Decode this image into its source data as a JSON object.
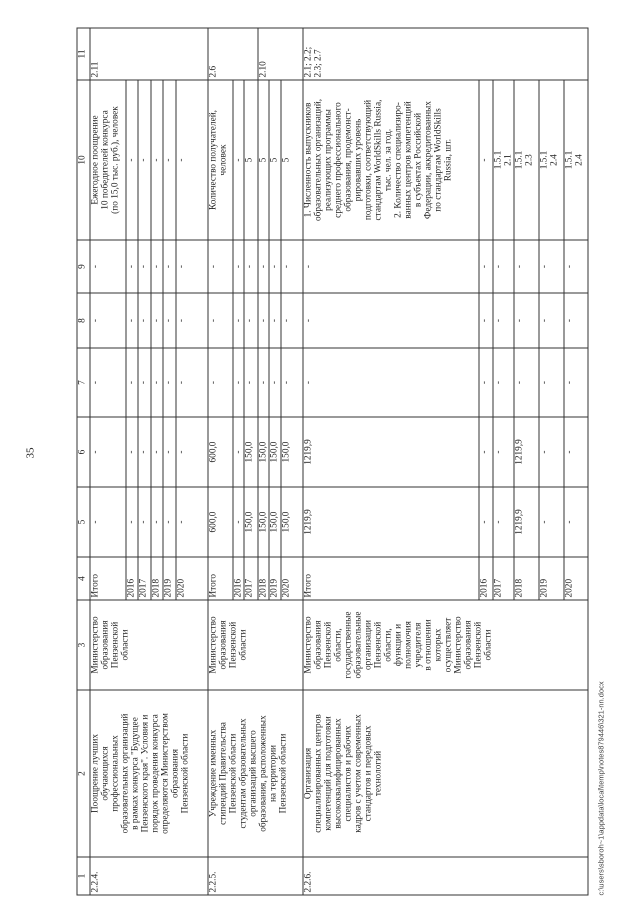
{
  "page_number": "35",
  "footer_path": "c:\\users\\sboroh~1\\appdata\\local\\temp\\notes879446\\321-nn.docx",
  "table": {
    "header": [
      "1",
      "2",
      "3",
      "4",
      "5",
      "6",
      "7",
      "8",
      "9",
      "10",
      "11"
    ],
    "groups": [
      {
        "num": "2.2.4.",
        "name": "Поощрение лучших\nобучающихся\nпрофессиональных\nобразовательных организаций\nв рамках конкурса \"Будущее\nПензенского края\". Условия и\nпорядок проведения конкурса\nопределяются Министерством\nобразования\nПензенской области",
        "executor": "Министерство\nобразования\nПензенской\nобласти",
        "rows": [
          {
            "period": "Итого",
            "values": [
              "-",
              "-",
              "-",
              "-",
              "-",
              "Ежегодное поощрение\n10 победителей конкурса\n(по 15,0 тыс. руб.), человек"
            ]
          },
          {
            "period": "2016",
            "values": [
              "-",
              "-",
              "-",
              "-",
              "-",
              "-"
            ]
          },
          {
            "period": "2017",
            "values": [
              "-",
              "-",
              "-",
              "-",
              "-",
              "-"
            ]
          },
          {
            "period": "2018",
            "values": [
              "-",
              "-",
              "-",
              "-",
              "-",
              "-"
            ]
          },
          {
            "period": "2019",
            "values": [
              "-",
              "-",
              "-",
              "-",
              "-",
              "-"
            ]
          },
          {
            "period": "2020",
            "values": [
              "-",
              "-",
              "-",
              "-",
              "-",
              "-"
            ]
          }
        ],
        "targets": [
          {
            "text": "2.11",
            "span": 6
          }
        ]
      },
      {
        "num": "2.2.5.",
        "name": "Учреждение именных\nстипендий Правительства\nПензенской области\nстудентам образовательных\nорганизаций высшего\nобразования, расположенных\nна территории\nПензенской области",
        "executor": "Министерство\nобразования\nПензенской\nобласти",
        "rows": [
          {
            "period": "Итого",
            "values": [
              "600,0",
              "600,0",
              "-",
              "-",
              "-",
              "Количество получателей,\nчеловек"
            ]
          },
          {
            "period": "2016",
            "values": [
              "-",
              "-",
              "-",
              "-",
              "-",
              "-"
            ]
          },
          {
            "period": "2017",
            "values": [
              "150,0",
              "150,0",
              "-",
              "-",
              "-",
              "5"
            ]
          },
          {
            "period": "2018",
            "values": [
              "150,0",
              "150,0",
              "-",
              "-",
              "-",
              "5"
            ]
          },
          {
            "period": "2019",
            "values": [
              "150,0",
              "150,0",
              "-",
              "-",
              "-",
              "5"
            ]
          },
          {
            "period": "2020",
            "values": [
              "150,0",
              "150,0",
              "-",
              "-",
              "-",
              "5"
            ]
          }
        ],
        "targets": [
          {
            "text": "2.6",
            "span": 3
          },
          {
            "text": "2.10",
            "span": 3
          }
        ]
      },
      {
        "num": "2.2.6.",
        "name": "Организация\nспециализированных центров\nкомпетенций для подготовки\nвысококвалифицированных\nспециалистов и рабочих\nкадров с учетом современных\nстандартов и передовых\nтехнологий",
        "executor": "Министерство\nобразования\nПензенской\nобласти,\nгосударственные\nобразовательные\nорганизации\nПензенской\nобласти,\nфункции и\nполномочия\nучредителя\nв отношении\nкоторых\nосуществляет\nМинистерство\nобразования\nПензенской\nобласти",
        "rows": [
          {
            "period": "Итого",
            "values": [
              "1219,9",
              "1219,9",
              "-",
              "-",
              "-",
              "1. Численность выпускников\nобразовательных организаций,\nреализующих программы\nсреднего профессионального\nобразования, продемонст-\nрировавших уровень\nподготовки, соответствующий\nстандартам WorldSkills Russia,\nтыс. чел. за год.\n2. Количество специализиро-\nванных центров компетенций\nв субъектах Российской\nФедерации, аккредитованных\nпо стандартам WorldSkills\nRussia, шт."
            ]
          },
          {
            "period": "2016",
            "values": [
              "-",
              "-",
              "-",
              "-",
              "-",
              "-"
            ]
          },
          {
            "period": "2017",
            "values": [
              "-",
              "-",
              "-",
              "-",
              "-",
              "1.5.1\n2.1"
            ]
          },
          {
            "period": "2018",
            "values": [
              "1219,9",
              "1219,9",
              "-",
              "-",
              "-",
              "1.5.1\n2.3"
            ]
          },
          {
            "period": "2019",
            "values": [
              "-",
              "-",
              "-",
              "-",
              "-",
              "1.5.1\n2.4"
            ]
          },
          {
            "period": "2020",
            "values": [
              "-",
              "-",
              "-",
              "-",
              "-",
              "1.5.1\n2.4"
            ]
          }
        ],
        "targets": [
          {
            "text": "2.1; 2.2;\n2.3; 2.7",
            "span": 6
          }
        ]
      }
    ]
  }
}
